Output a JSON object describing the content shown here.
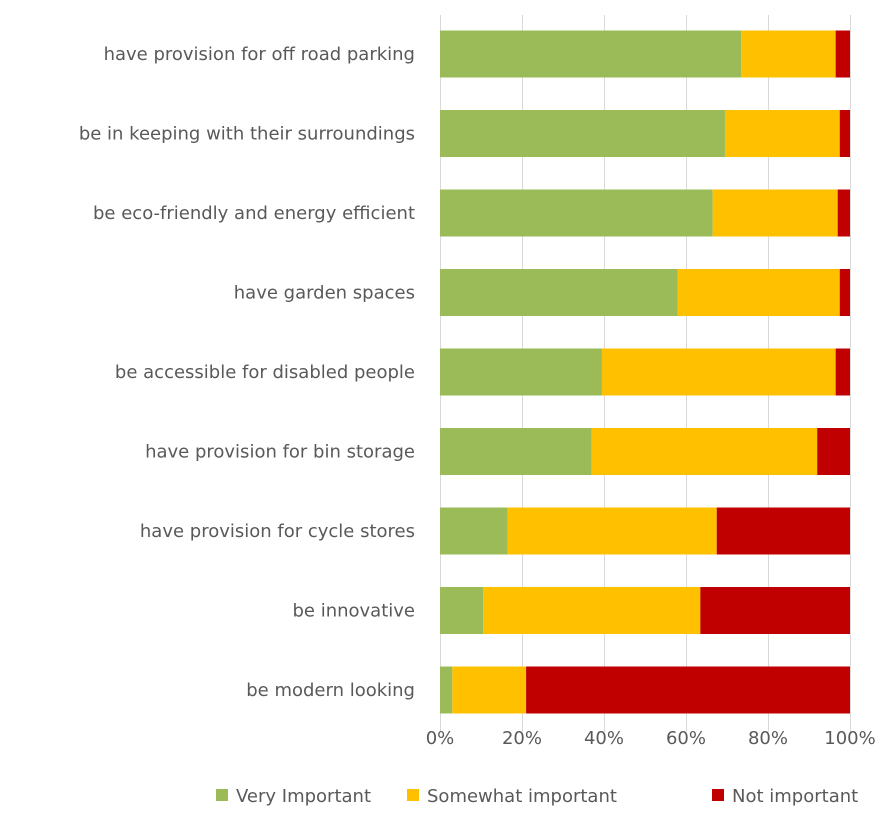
{
  "chart_data": {
    "type": "bar",
    "orientation": "horizontal",
    "stacked": "percent",
    "title": "",
    "xlabel": "",
    "ylabel": "",
    "categories": [
      "have provision for off road parking",
      "be in keeping with their surroundings",
      "be eco-friendly and energy efficient",
      "have garden spaces",
      "be accessible for disabled people",
      "have provision for bin storage",
      "have provision for cycle stores",
      "be innovative",
      "be modern looking"
    ],
    "series": [
      {
        "name": "Very Important",
        "color": "#9BBB59",
        "values": [
          73.5,
          69.5,
          66.5,
          58,
          39.5,
          37,
          16.5,
          10.5,
          3
        ]
      },
      {
        "name": "Somewhat important",
        "color": "#FFC000",
        "values": [
          23,
          28,
          30.5,
          39.5,
          57,
          55,
          51,
          53,
          18
        ]
      },
      {
        "name": "Not important",
        "color": "#C00000",
        "values": [
          3.5,
          2.5,
          3,
          2.5,
          3.5,
          8,
          32.5,
          36.5,
          79
        ]
      }
    ],
    "xlim": [
      0,
      100
    ],
    "xticks": [
      "0%",
      "20%",
      "40%",
      "60%",
      "80%",
      "100%"
    ],
    "xtick_values": [
      0,
      20,
      40,
      60,
      80,
      100
    ],
    "grid": true,
    "legend_position": "bottom"
  }
}
